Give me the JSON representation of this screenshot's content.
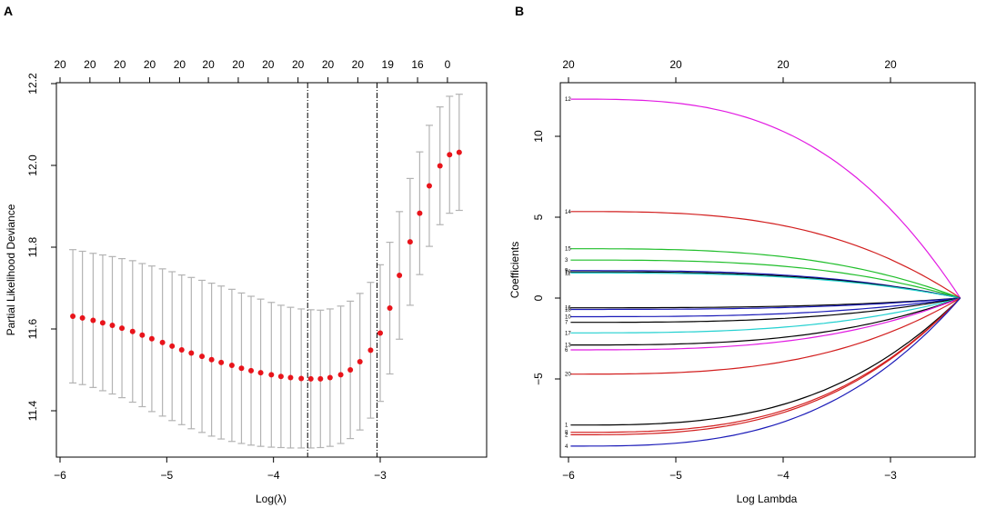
{
  "panels": {
    "a_letter": "A",
    "b_letter": "B"
  },
  "colors": {
    "point": "#e8141b",
    "errorbar": "#b3b3b3",
    "vline": "#000000"
  },
  "chart_data": [
    {
      "type": "scatter",
      "panel": "A",
      "title": "",
      "xlabel": "Log(λ)",
      "ylabel": "Partial Likelihood Deviance",
      "xlim": [
        -6.2,
        -2.0
      ],
      "ylim": [
        11.28,
        12.22
      ],
      "xticks": [
        -6,
        -5,
        -4,
        -3
      ],
      "xtick_labels": [
        "−6",
        "−5",
        "−4",
        "−3"
      ],
      "yticks": [
        11.4,
        11.6,
        11.8,
        12.0,
        12.2
      ],
      "ytick_labels": [
        "11.4",
        "11.6",
        "11.8",
        "12.0",
        "12.2"
      ],
      "top_axis": {
        "x": [
          -6.0,
          -5.72,
          -5.44,
          -5.16,
          -4.88,
          -4.61,
          -4.33,
          -4.05,
          -3.77,
          -3.49,
          -3.21,
          -2.93,
          -2.65,
          -2.37
        ],
        "labels": [
          "20",
          "20",
          "20",
          "20",
          "20",
          "20",
          "20",
          "20",
          "20",
          "20",
          "20",
          "19",
          "16",
          "0"
        ]
      },
      "vlines": [
        -3.68,
        -3.03
      ],
      "x": [
        -5.88,
        -5.79,
        -5.69,
        -5.6,
        -5.51,
        -5.42,
        -5.32,
        -5.23,
        -5.14,
        -5.04,
        -4.95,
        -4.86,
        -4.77,
        -4.67,
        -4.58,
        -4.49,
        -4.39,
        -4.3,
        -4.21,
        -4.12,
        -4.02,
        -3.93,
        -3.84,
        -3.74,
        -3.65,
        -3.56,
        -3.47,
        -3.37,
        -3.28,
        -3.19,
        -3.09,
        -3.0,
        -2.91,
        -2.82,
        -2.72,
        -2.63,
        -2.54,
        -2.44,
        -2.35,
        -2.26
      ],
      "mean": [
        11.631,
        11.627,
        11.621,
        11.615,
        11.609,
        11.602,
        11.594,
        11.585,
        11.576,
        11.567,
        11.558,
        11.549,
        11.541,
        11.533,
        11.525,
        11.518,
        11.511,
        11.504,
        11.498,
        11.493,
        11.488,
        11.484,
        11.481,
        11.479,
        11.478,
        11.478,
        11.481,
        11.488,
        11.5,
        11.52,
        11.548,
        11.59,
        11.651,
        11.731,
        11.813,
        11.883,
        11.95,
        11.999,
        12.026,
        12.032
      ],
      "lower": [
        11.468,
        11.464,
        11.457,
        11.449,
        11.441,
        11.432,
        11.421,
        11.41,
        11.398,
        11.387,
        11.376,
        11.366,
        11.356,
        11.347,
        11.338,
        11.331,
        11.325,
        11.32,
        11.316,
        11.313,
        11.311,
        11.31,
        11.309,
        11.309,
        11.309,
        11.31,
        11.313,
        11.32,
        11.332,
        11.353,
        11.382,
        11.423,
        11.49,
        11.575,
        11.658,
        11.733,
        11.802,
        11.855,
        11.883,
        11.89
      ],
      "upper": [
        11.794,
        11.79,
        11.785,
        11.781,
        11.777,
        11.772,
        11.767,
        11.76,
        11.754,
        11.747,
        11.74,
        11.732,
        11.726,
        11.719,
        11.712,
        11.705,
        11.697,
        11.688,
        11.68,
        11.673,
        11.665,
        11.658,
        11.653,
        11.649,
        11.647,
        11.646,
        11.649,
        11.656,
        11.668,
        11.687,
        11.714,
        11.757,
        11.812,
        11.887,
        11.968,
        12.033,
        12.098,
        12.143,
        12.169,
        12.174
      ]
    },
    {
      "type": "line",
      "panel": "B",
      "title": "",
      "xlabel": "Log Lambda",
      "ylabel": "Coefficients",
      "xlim": [
        -6.0,
        -2.2
      ],
      "ylim": [
        -9.8,
        13.3
      ],
      "xticks": [
        -6,
        -5,
        -4,
        -3
      ],
      "xtick_labels": [
        "−6",
        "−5",
        "−4",
        "−3"
      ],
      "yticks": [
        -5,
        0,
        5,
        10
      ],
      "ytick_labels": [
        "−5",
        "0",
        "5",
        "10"
      ],
      "top_axis": {
        "x": [
          -6,
          -5,
          -4,
          -3
        ],
        "labels": [
          "20",
          "20",
          "20",
          "20"
        ]
      },
      "end_x": -2.35,
      "series": [
        {
          "name": "12",
          "color": "#e21ae2",
          "start": 12.3
        },
        {
          "name": "14",
          "color": "#d21e1e",
          "start": 5.35
        },
        {
          "name": "15",
          "color": "#1fbe2a",
          "start": 3.05
        },
        {
          "name": "3",
          "color": "#1fbe2a",
          "start": 2.35
        },
        {
          "name": "9",
          "color": "#1a1ab8",
          "start": 1.7
        },
        {
          "name": "19",
          "color": "#000000",
          "start": 1.62
        },
        {
          "name": "11",
          "color": "#22d0d0",
          "start": 1.55
        },
        {
          "name": "16",
          "color": "#000000",
          "start": -0.6
        },
        {
          "name": "18",
          "color": "#1a1ab8",
          "start": -0.7
        },
        {
          "name": "10",
          "color": "#1a1ab8",
          "start": -1.15
        },
        {
          "name": "7",
          "color": "#000000",
          "start": -1.5
        },
        {
          "name": "17",
          "color": "#22d0d0",
          "start": -2.15
        },
        {
          "name": "13",
          "color": "#000000",
          "start": -2.9
        },
        {
          "name": "6",
          "color": "#e21ae2",
          "start": -3.2
        },
        {
          "name": "20",
          "color": "#d21e1e",
          "start": -4.7
        },
        {
          "name": "1",
          "color": "#000000",
          "start": -7.85
        },
        {
          "name": "8",
          "color": "#d21e1e",
          "start": -8.3
        },
        {
          "name": "2",
          "color": "#d21e1e",
          "start": -8.45
        },
        {
          "name": "4",
          "color": "#1a1ab8",
          "start": -9.15
        }
      ]
    }
  ]
}
